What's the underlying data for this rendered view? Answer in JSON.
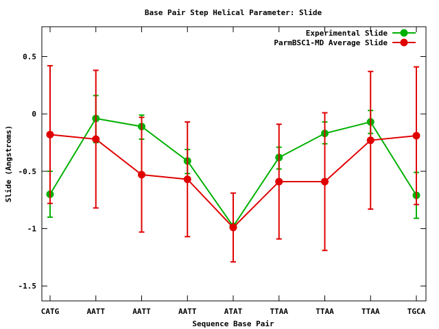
{
  "chart_data": {
    "type": "line",
    "title": "Base Pair Step Helical Parameter: Slide",
    "xlabel": "Sequence Base Pair",
    "ylabel": "Slide (Angstroms)",
    "categories": [
      "CATG",
      "AATT",
      "AATT",
      "AATT",
      "ATAT",
      "TTAA",
      "TTAA",
      "TTAA",
      "TGCA"
    ],
    "ylim": [
      -1.63,
      0.76
    ],
    "yticks": [
      0.5,
      0,
      -0.5,
      -1,
      -1.5
    ],
    "ytick_labels": [
      "0.5",
      "0",
      "-0.5",
      "-1",
      "-1.5"
    ],
    "grid": false,
    "legend_position": "top-right",
    "series": [
      {
        "name": "Experimental Slide",
        "color": "#00b000",
        "values": [
          -0.7,
          -0.04,
          -0.11,
          -0.41,
          -0.98,
          -0.38,
          -0.17,
          -0.07,
          -0.71
        ],
        "error_low": [
          -0.9,
          -0.25,
          -0.22,
          -0.52,
          -0.99,
          -0.48,
          -0.26,
          -0.17,
          -0.91
        ],
        "error_high": [
          -0.5,
          0.16,
          -0.01,
          -0.31,
          -0.97,
          -0.29,
          -0.07,
          0.03,
          -0.51
        ]
      },
      {
        "name": "ParmBSC1-MD Average Slide",
        "color": "#e00000",
        "values": [
          -0.18,
          -0.22,
          -0.53,
          -0.57,
          -0.99,
          -0.59,
          -0.59,
          -0.23,
          -0.19
        ],
        "error_low": [
          -0.78,
          -0.82,
          -1.03,
          -1.07,
          -1.29,
          -1.09,
          -1.19,
          -0.83,
          -0.79
        ],
        "error_high": [
          0.42,
          0.38,
          -0.03,
          -0.07,
          -0.69,
          -0.09,
          0.01,
          0.37,
          0.41
        ]
      }
    ]
  }
}
